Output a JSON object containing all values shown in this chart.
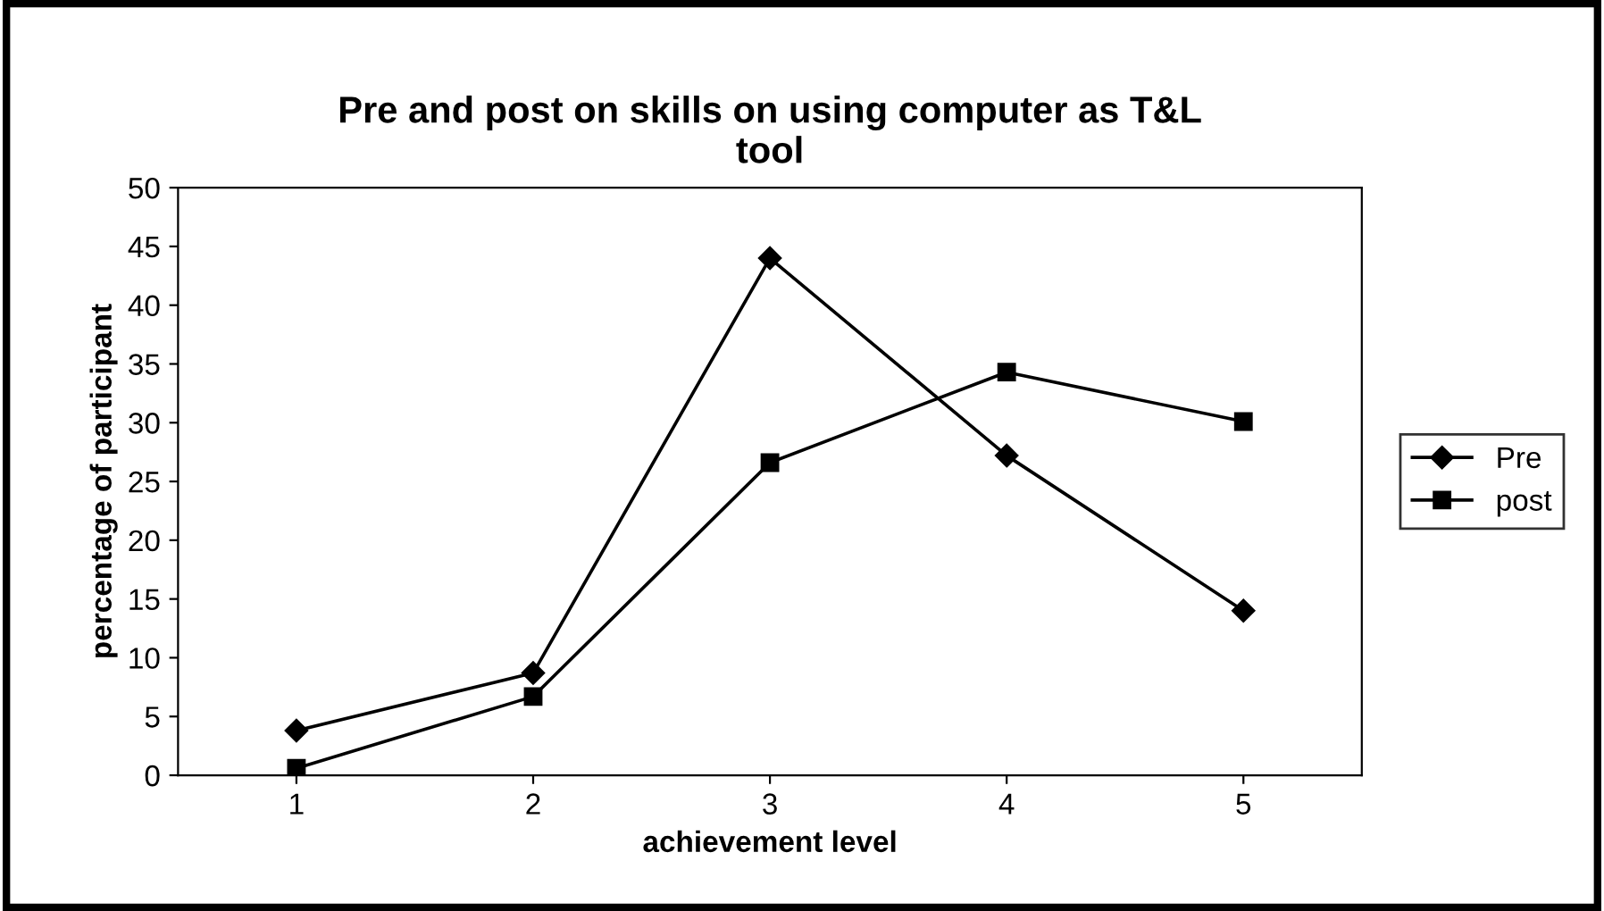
{
  "chart_data": {
    "type": "line",
    "title": "Pre and post on skills on using computer as T&L\ntool",
    "xlabel": "achievement level",
    "ylabel": "percentage of participant",
    "categories": [
      "1",
      "2",
      "3",
      "4",
      "5"
    ],
    "series": [
      {
        "name": "Pre",
        "color": "#000000",
        "marker": "diamond",
        "values": [
          3.8,
          8.7,
          44,
          27.2,
          14
        ]
      },
      {
        "name": "post",
        "color": "#000000",
        "marker": "square",
        "values": [
          0.6,
          6.7,
          26.6,
          34.3,
          30.1
        ]
      }
    ],
    "ylim": [
      0,
      50
    ],
    "yticks": [
      0,
      5,
      10,
      15,
      20,
      25,
      30,
      35,
      40,
      45,
      50
    ],
    "grid": false,
    "legend": "right",
    "line_style": "solid"
  }
}
